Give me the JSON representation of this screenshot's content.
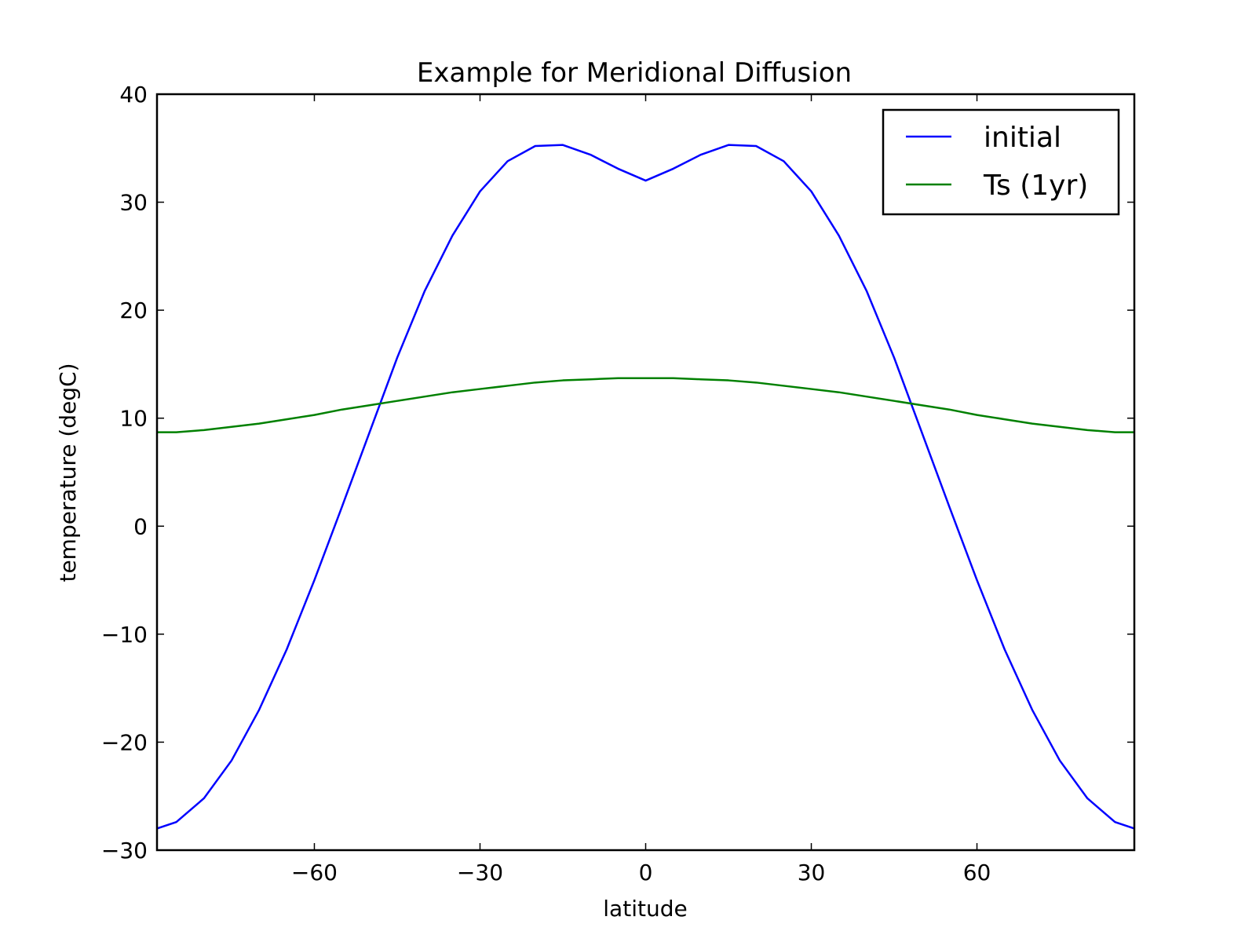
{
  "chart_data": {
    "type": "line",
    "title": "Example for Meridional Diffusion",
    "xlabel": "latitude",
    "ylabel": "temperature (degC)",
    "xlim": [
      -88.5,
      88.5
    ],
    "ylim": [
      -30,
      40
    ],
    "xticks": [
      -60,
      -30,
      0,
      30,
      60
    ],
    "xtick_labels": [
      "−60",
      "−30",
      "0",
      "30",
      "60"
    ],
    "yticks": [
      -30,
      -20,
      -10,
      0,
      10,
      20,
      30,
      40
    ],
    "ytick_labels": [
      "−30",
      "−20",
      "−10",
      "0",
      "10",
      "20",
      "30",
      "40"
    ],
    "grid": false,
    "legend_position": "top-right",
    "series": [
      {
        "name": "initial",
        "color": "#0000ff",
        "x": [
          -88.5,
          -85,
          -80,
          -75,
          -70,
          -65,
          -60,
          -55,
          -50,
          -45,
          -40,
          -35,
          -30,
          -25,
          -20,
          -15,
          -10,
          -5,
          0,
          5,
          10,
          15,
          20,
          25,
          30,
          35,
          40,
          45,
          50,
          55,
          60,
          65,
          70,
          75,
          80,
          85,
          88.5
        ],
        "y": [
          -28.0,
          -27.4,
          -25.2,
          -21.7,
          -17.0,
          -11.4,
          -5.0,
          1.8,
          8.7,
          15.6,
          21.8,
          26.9,
          31.0,
          33.8,
          35.2,
          35.3,
          34.4,
          33.1,
          32.0,
          33.1,
          34.4,
          35.3,
          35.2,
          33.8,
          31.0,
          26.9,
          21.8,
          15.6,
          8.7,
          1.8,
          -5.0,
          -11.4,
          -17.0,
          -21.7,
          -25.2,
          -27.4,
          -28.0
        ]
      },
      {
        "name": "Ts (1yr)",
        "color": "#008000",
        "x": [
          -88.5,
          -85,
          -80,
          -75,
          -70,
          -65,
          -60,
          -55,
          -50,
          -45,
          -40,
          -35,
          -30,
          -25,
          -20,
          -15,
          -10,
          -5,
          0,
          5,
          10,
          15,
          20,
          25,
          30,
          35,
          40,
          45,
          50,
          55,
          60,
          65,
          70,
          75,
          80,
          85,
          88.5
        ],
        "y": [
          8.7,
          8.7,
          8.9,
          9.2,
          9.5,
          9.9,
          10.3,
          10.8,
          11.2,
          11.6,
          12.0,
          12.4,
          12.7,
          13.0,
          13.3,
          13.5,
          13.6,
          13.7,
          13.7,
          13.7,
          13.6,
          13.5,
          13.3,
          13.0,
          12.7,
          12.4,
          12.0,
          11.6,
          11.2,
          10.8,
          10.3,
          9.9,
          9.5,
          9.2,
          8.9,
          8.7,
          8.7
        ]
      }
    ]
  }
}
